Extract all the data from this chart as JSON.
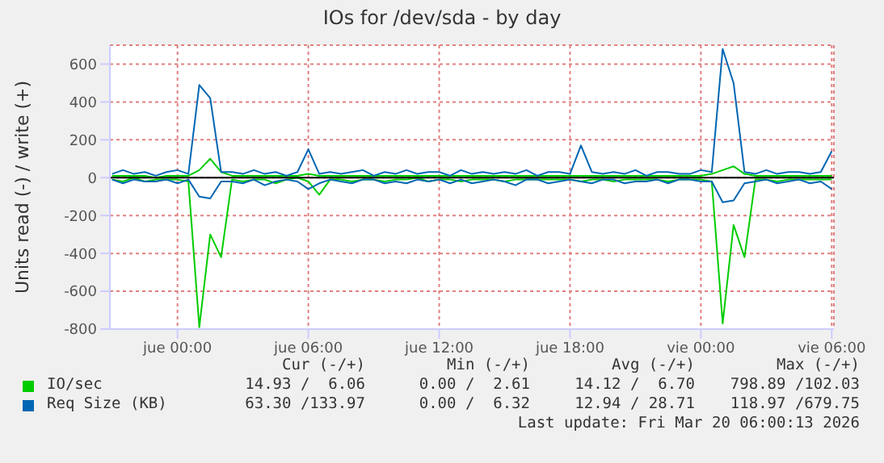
{
  "chart_data": {
    "type": "line",
    "title": "IOs for /dev/sda - by day",
    "ylabel": "Units read (-) / write (+)",
    "x": [
      "2026-03-18T21:00",
      "2026-03-18T21:30",
      "2026-03-18T22:00",
      "2026-03-18T22:30",
      "2026-03-18T23:00",
      "2026-03-18T23:30",
      "2026-03-19T00:00",
      "2026-03-19T00:30",
      "2026-03-19T01:00",
      "2026-03-19T01:30",
      "2026-03-19T02:00",
      "2026-03-19T02:30",
      "2026-03-19T03:00",
      "2026-03-19T03:30",
      "2026-03-19T04:00",
      "2026-03-19T04:30",
      "2026-03-19T05:00",
      "2026-03-19T05:30",
      "2026-03-19T06:00",
      "2026-03-19T06:30",
      "2026-03-19T07:00",
      "2026-03-19T07:30",
      "2026-03-19T08:00",
      "2026-03-19T08:30",
      "2026-03-19T09:00",
      "2026-03-19T09:30",
      "2026-03-19T10:00",
      "2026-03-19T10:30",
      "2026-03-19T11:00",
      "2026-03-19T11:30",
      "2026-03-19T12:00",
      "2026-03-19T12:30",
      "2026-03-19T13:00",
      "2026-03-19T13:30",
      "2026-03-19T14:00",
      "2026-03-19T14:30",
      "2026-03-19T15:00",
      "2026-03-19T15:30",
      "2026-03-19T16:00",
      "2026-03-19T16:30",
      "2026-03-19T17:00",
      "2026-03-19T17:30",
      "2026-03-19T18:00",
      "2026-03-19T18:30",
      "2026-03-19T19:00",
      "2026-03-19T19:30",
      "2026-03-19T20:00",
      "2026-03-19T20:30",
      "2026-03-19T21:00",
      "2026-03-19T21:30",
      "2026-03-19T22:00",
      "2026-03-19T22:30",
      "2026-03-19T23:00",
      "2026-03-19T23:30",
      "2026-03-20T00:00",
      "2026-03-20T00:30",
      "2026-03-20T01:00",
      "2026-03-20T01:30",
      "2026-03-20T02:00",
      "2026-03-20T02:30",
      "2026-03-20T03:00",
      "2026-03-20T03:30",
      "2026-03-20T04:00",
      "2026-03-20T04:30",
      "2026-03-20T05:00",
      "2026-03-20T05:30",
      "2026-03-20T06:00"
    ],
    "series": [
      {
        "name": "IO/sec",
        "color": "#00cc00",
        "values": [
          10,
          10,
          10,
          10,
          0,
          10,
          10,
          10,
          40,
          100,
          30,
          10,
          10,
          10,
          10,
          10,
          10,
          10,
          20,
          10,
          10,
          10,
          10,
          10,
          10,
          10,
          10,
          10,
          10,
          10,
          10,
          10,
          10,
          10,
          10,
          10,
          10,
          10,
          10,
          10,
          10,
          10,
          10,
          10,
          10,
          10,
          10,
          10,
          10,
          10,
          10,
          10,
          10,
          10,
          10,
          20,
          40,
          60,
          20,
          10,
          10,
          10,
          10,
          10,
          10,
          10,
          10
        ]
      },
      {
        "color": "#00cc00",
        "values": [
          -10,
          -20,
          0,
          -20,
          -10,
          -10,
          -10,
          -20,
          -790,
          -300,
          -420,
          -10,
          -20,
          -10,
          -10,
          -30,
          -10,
          0,
          -20,
          -90,
          -10,
          -10,
          -20,
          -10,
          -10,
          -20,
          -10,
          -10,
          0,
          -20,
          -10,
          -10,
          -20,
          -10,
          -10,
          -10,
          -20,
          -10,
          -10,
          -10,
          -10,
          -10,
          -10,
          -20,
          -10,
          -10,
          -20,
          -10,
          -10,
          -10,
          -10,
          -20,
          -10,
          -10,
          -10,
          -20,
          -770,
          -250,
          -420,
          -10,
          -10,
          -20,
          -10,
          -10,
          -10,
          -10,
          -10
        ]
      },
      {
        "name": "Req Size (KB)",
        "color": "#0066b3",
        "values": [
          20,
          40,
          20,
          30,
          10,
          30,
          40,
          20,
          490,
          420,
          30,
          30,
          20,
          40,
          20,
          30,
          10,
          30,
          150,
          20,
          30,
          20,
          30,
          40,
          10,
          30,
          20,
          40,
          20,
          30,
          30,
          10,
          40,
          20,
          30,
          20,
          30,
          20,
          40,
          10,
          30,
          30,
          20,
          170,
          30,
          20,
          30,
          20,
          40,
          10,
          30,
          30,
          20,
          20,
          40,
          30,
          680,
          500,
          30,
          20,
          40,
          20,
          30,
          30,
          20,
          30,
          140
        ]
      },
      {
        "color": "#0066b3",
        "values": [
          -10,
          -30,
          -10,
          -20,
          -20,
          -10,
          -30,
          -10,
          -100,
          -110,
          -20,
          -20,
          -30,
          -10,
          -40,
          -20,
          -10,
          -20,
          -60,
          -30,
          -10,
          -20,
          -30,
          -10,
          -10,
          -30,
          -20,
          -30,
          -10,
          -20,
          -10,
          -30,
          -10,
          -30,
          -20,
          -10,
          -20,
          -40,
          -10,
          -10,
          -30,
          -20,
          -10,
          -20,
          -30,
          -10,
          -10,
          -30,
          -20,
          -20,
          -10,
          -30,
          -10,
          -10,
          -20,
          -20,
          -130,
          -120,
          -30,
          -20,
          -10,
          -30,
          -20,
          -10,
          -30,
          -20,
          -60
        ]
      }
    ],
    "xlim": [
      "2026-03-18T20:54",
      "2026-03-20T06:06"
    ],
    "xticks": [
      {
        "value": "2026-03-19T00:00",
        "label": "jue 00:00"
      },
      {
        "value": "2026-03-19T06:00",
        "label": "jue 06:00"
      },
      {
        "value": "2026-03-19T12:00",
        "label": "jue 12:00"
      },
      {
        "value": "2026-03-19T18:00",
        "label": "jue 18:00"
      },
      {
        "value": "2026-03-20T00:00",
        "label": "vie 00:00"
      },
      {
        "value": "2026-03-20T06:00",
        "label": "vie 06:00"
      }
    ],
    "ylim": [
      -800,
      700
    ],
    "yticks": [
      -800,
      -600,
      -400,
      -200,
      0,
      200,
      400,
      600
    ],
    "ref_lines": [
      {
        "axis": "y",
        "value": 0,
        "color": "#000000"
      }
    ],
    "grid": true,
    "legend": "bottom",
    "marker": "none",
    "line_style": "solid",
    "annotations": [
      "Cur (-/+)",
      "Min (-/+)",
      "Avg (-/+)",
      "Max (-/+)",
      "14.93 /  6.06",
      "0.00 /  2.61",
      "14.12 /  6.70",
      "798.89 /102.03",
      "63.30 /133.97",
      "0.00 /  6.32",
      "12.94 / 28.71",
      "118.97 /679.75",
      "Last update: Fri Mar 20 06:00:13 2026"
    ]
  }
}
